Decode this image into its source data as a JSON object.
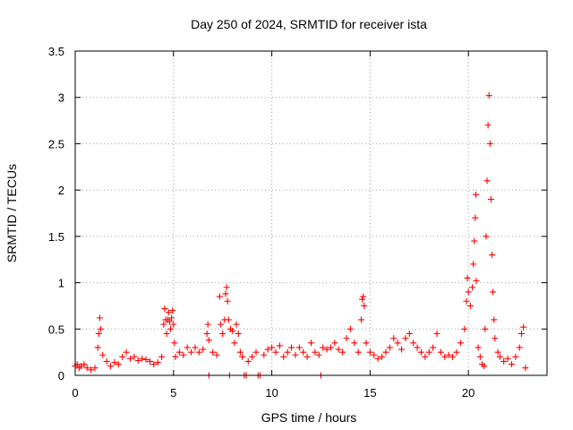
{
  "chart_data": {
    "type": "scatter",
    "title": "Day 250 of 2024, SRMTID for receiver ista",
    "xlabel": "GPS time / hours",
    "ylabel": "SRMTID / TECUs",
    "xlim": [
      0,
      24
    ],
    "ylim": [
      0,
      3.5
    ],
    "x_ticks": [
      0,
      5,
      10,
      15,
      20
    ],
    "x_tick_labels": [
      "0",
      "5",
      "10",
      "15",
      "20"
    ],
    "y_ticks": [
      0,
      0.5,
      1,
      1.5,
      2,
      2.5,
      3,
      3.5
    ],
    "y_tick_labels": [
      "0",
      "0.5",
      "1",
      "1.5",
      "2",
      "2.5",
      "3",
      "3.5"
    ],
    "grid": true,
    "marker": "plus",
    "color": "#ff0000",
    "series": [
      {
        "name": "SRMTID",
        "points": [
          [
            0.0,
            0.1
          ],
          [
            0.1,
            0.12
          ],
          [
            0.2,
            0.08
          ],
          [
            0.3,
            0.1
          ],
          [
            0.45,
            0.12
          ],
          [
            0.6,
            0.08
          ],
          [
            0.8,
            0.06
          ],
          [
            1.0,
            0.08
          ],
          [
            1.15,
            0.3
          ],
          [
            1.2,
            0.45
          ],
          [
            1.25,
            0.62
          ],
          [
            1.3,
            0.5
          ],
          [
            1.4,
            0.22
          ],
          [
            1.6,
            0.15
          ],
          [
            1.8,
            0.1
          ],
          [
            2.0,
            0.14
          ],
          [
            2.2,
            0.12
          ],
          [
            2.4,
            0.2
          ],
          [
            2.6,
            0.25
          ],
          [
            2.8,
            0.18
          ],
          [
            3.0,
            0.2
          ],
          [
            3.2,
            0.16
          ],
          [
            3.4,
            0.18
          ],
          [
            3.6,
            0.17
          ],
          [
            3.8,
            0.15
          ],
          [
            4.0,
            0.12
          ],
          [
            4.2,
            0.14
          ],
          [
            4.4,
            0.2
          ],
          [
            4.5,
            0.55
          ],
          [
            4.55,
            0.72
          ],
          [
            4.6,
            0.6
          ],
          [
            4.65,
            0.45
          ],
          [
            4.7,
            0.6
          ],
          [
            4.75,
            0.68
          ],
          [
            4.8,
            0.58
          ],
          [
            4.85,
            0.5
          ],
          [
            4.9,
            0.62
          ],
          [
            4.95,
            0.7
          ],
          [
            5.0,
            0.55
          ],
          [
            5.05,
            0.35
          ],
          [
            5.1,
            0.2
          ],
          [
            5.3,
            0.25
          ],
          [
            5.5,
            0.22
          ],
          [
            5.7,
            0.3
          ],
          [
            5.9,
            0.25
          ],
          [
            6.1,
            0.3
          ],
          [
            6.3,
            0.25
          ],
          [
            6.5,
            0.28
          ],
          [
            6.7,
            0.45
          ],
          [
            6.75,
            0.55
          ],
          [
            6.8,
            0.38
          ],
          [
            6.8,
            0.0
          ],
          [
            7.0,
            0.25
          ],
          [
            7.2,
            0.22
          ],
          [
            7.35,
            0.85
          ],
          [
            7.4,
            0.55
          ],
          [
            7.5,
            0.45
          ],
          [
            7.6,
            0.6
          ],
          [
            7.65,
            0.88
          ],
          [
            7.7,
            0.95
          ],
          [
            7.75,
            0.8
          ],
          [
            7.8,
            0.6
          ],
          [
            7.85,
            0.0
          ],
          [
            7.9,
            0.5
          ],
          [
            8.0,
            0.48
          ],
          [
            8.1,
            0.35
          ],
          [
            8.2,
            0.55
          ],
          [
            8.3,
            0.45
          ],
          [
            8.4,
            0.25
          ],
          [
            8.5,
            0.2
          ],
          [
            8.6,
            0.0
          ],
          [
            8.7,
            0.0
          ],
          [
            8.8,
            0.15
          ],
          [
            9.0,
            0.2
          ],
          [
            9.2,
            0.25
          ],
          [
            9.3,
            0.0
          ],
          [
            9.4,
            0.0
          ],
          [
            9.6,
            0.22
          ],
          [
            9.8,
            0.28
          ],
          [
            10.0,
            0.3
          ],
          [
            10.2,
            0.25
          ],
          [
            10.4,
            0.32
          ],
          [
            10.6,
            0.2
          ],
          [
            10.8,
            0.25
          ],
          [
            11.0,
            0.3
          ],
          [
            11.2,
            0.22
          ],
          [
            11.4,
            0.3
          ],
          [
            11.6,
            0.25
          ],
          [
            11.8,
            0.2
          ],
          [
            12.0,
            0.35
          ],
          [
            12.2,
            0.25
          ],
          [
            12.4,
            0.22
          ],
          [
            12.5,
            0.0
          ],
          [
            12.6,
            0.3
          ],
          [
            12.8,
            0.28
          ],
          [
            13.0,
            0.3
          ],
          [
            13.2,
            0.35
          ],
          [
            13.4,
            0.28
          ],
          [
            13.6,
            0.25
          ],
          [
            13.8,
            0.4
          ],
          [
            14.0,
            0.5
          ],
          [
            14.2,
            0.35
          ],
          [
            14.4,
            0.25
          ],
          [
            14.55,
            0.6
          ],
          [
            14.6,
            0.82
          ],
          [
            14.65,
            0.85
          ],
          [
            14.7,
            0.75
          ],
          [
            14.8,
            0.35
          ],
          [
            15.0,
            0.25
          ],
          [
            15.2,
            0.22
          ],
          [
            15.4,
            0.18
          ],
          [
            15.6,
            0.2
          ],
          [
            15.8,
            0.25
          ],
          [
            16.0,
            0.3
          ],
          [
            16.2,
            0.4
          ],
          [
            16.4,
            0.35
          ],
          [
            16.6,
            0.28
          ],
          [
            16.8,
            0.4
          ],
          [
            17.0,
            0.45
          ],
          [
            17.2,
            0.35
          ],
          [
            17.4,
            0.3
          ],
          [
            17.6,
            0.25
          ],
          [
            17.8,
            0.2
          ],
          [
            18.0,
            0.25
          ],
          [
            18.2,
            0.3
          ],
          [
            18.4,
            0.45
          ],
          [
            18.6,
            0.25
          ],
          [
            18.8,
            0.2
          ],
          [
            19.0,
            0.22
          ],
          [
            19.2,
            0.2
          ],
          [
            19.4,
            0.25
          ],
          [
            19.6,
            0.35
          ],
          [
            19.8,
            0.5
          ],
          [
            19.9,
            0.8
          ],
          [
            19.95,
            1.05
          ],
          [
            20.0,
            0.9
          ],
          [
            20.1,
            0.75
          ],
          [
            20.2,
            0.95
          ],
          [
            20.25,
            1.2
          ],
          [
            20.3,
            1.45
          ],
          [
            20.35,
            1.7
          ],
          [
            20.38,
            1.95
          ],
          [
            20.4,
            1.02
          ],
          [
            20.5,
            0.3
          ],
          [
            20.6,
            0.2
          ],
          [
            20.7,
            0.12
          ],
          [
            20.8,
            0.1
          ],
          [
            20.85,
            0.5
          ],
          [
            20.9,
            1.5
          ],
          [
            20.95,
            2.1
          ],
          [
            21.0,
            2.7
          ],
          [
            21.05,
            3.02
          ],
          [
            21.1,
            2.5
          ],
          [
            21.15,
            1.9
          ],
          [
            21.2,
            1.3
          ],
          [
            21.25,
            0.9
          ],
          [
            21.3,
            0.6
          ],
          [
            21.35,
            0.4
          ],
          [
            21.5,
            0.25
          ],
          [
            21.6,
            0.2
          ],
          [
            21.8,
            0.15
          ],
          [
            22.0,
            0.18
          ],
          [
            22.2,
            0.12
          ],
          [
            22.4,
            0.2
          ],
          [
            22.6,
            0.3
          ],
          [
            22.7,
            0.45
          ],
          [
            22.8,
            0.52
          ],
          [
            22.9,
            0.08
          ]
        ]
      }
    ]
  }
}
